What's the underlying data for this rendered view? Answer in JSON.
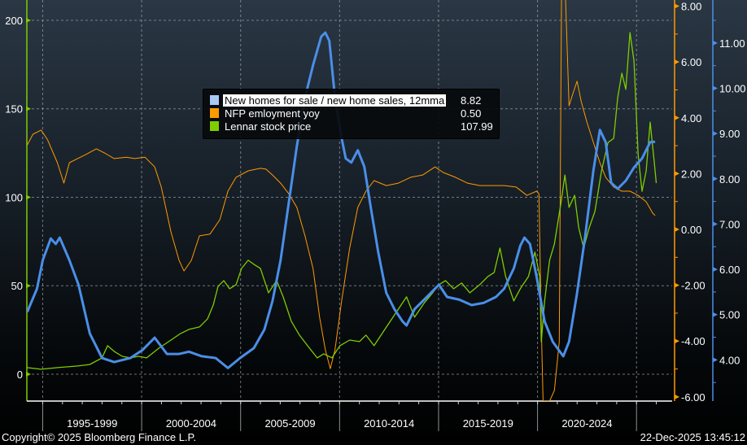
{
  "chart_data": {
    "type": "line",
    "title": "",
    "x_axis": {
      "type": "date",
      "range": [
        1994.2,
        2026.8
      ],
      "period_labels": [
        "1995-1999",
        "2000-2004",
        "2005-2009",
        "2010-2014",
        "2015-2019",
        "2020-2024"
      ],
      "gridlines_at_years": [
        1995,
        2000,
        2005,
        2010,
        2015,
        2020,
        2025
      ]
    },
    "axes": {
      "left": {
        "ylim": [
          -15.2,
          211.5
        ],
        "ticks": [
          0,
          50,
          100,
          150,
          200
        ],
        "tick_labels": [
          "0",
          "50",
          "100",
          "150",
          "200"
        ],
        "color": "#7fcc00"
      },
      "right_orange": {
        "ylim": [
          -6.15,
          8.22
        ],
        "ticks": [
          -6,
          -4,
          -2,
          0,
          2,
          4,
          6,
          8
        ],
        "tick_labels": [
          "-6.00",
          "-4.00",
          "-2.00",
          "0.00",
          "2.00",
          "4.00",
          "6.00",
          "8.00"
        ],
        "color": "#ff9a00"
      },
      "right_blue": {
        "ylim": [
          3.09,
          11.95
        ],
        "ticks": [
          4,
          5,
          6,
          7,
          8,
          9,
          10,
          11
        ],
        "tick_labels": [
          "4.00",
          "5.00",
          "6.00",
          "7.00",
          "8.00",
          "9.00",
          "10.00",
          "11.00"
        ],
        "color": "#4a8fe8"
      }
    },
    "grid": true,
    "legend": {
      "placement": "top-center"
    },
    "series": [
      {
        "name": "New homes for sale / new home sales, 12mma",
        "last_value": "8.82",
        "axis": "right_blue",
        "color": "#4a8fe8",
        "swatch": "#a9c8f5",
        "x": [
          1994.22,
          1994.71,
          1995.0,
          1995.41,
          1995.66,
          1995.86,
          1996.35,
          1996.81,
          1997.38,
          1998.0,
          1998.61,
          1999.43,
          2000.05,
          2000.66,
          2001.28,
          2001.89,
          2002.39,
          2003.04,
          2003.74,
          2004.36,
          2004.97,
          2005.67,
          2006.2,
          2006.61,
          2007.02,
          2007.43,
          2007.84,
          2008.25,
          2008.66,
          2009.07,
          2009.28,
          2009.48,
          2009.77,
          2010.1,
          2010.31,
          2010.59,
          2010.92,
          2011.25,
          2011.54,
          2011.95,
          2012.36,
          2012.77,
          2013.18,
          2013.38,
          2013.79,
          2014.41,
          2015.02,
          2015.43,
          2016.05,
          2016.67,
          2017.28,
          2017.9,
          2018.31,
          2018.8,
          2019.13,
          2019.34,
          2019.62,
          2019.95,
          2020.36,
          2020.77,
          2021.3,
          2021.59,
          2022.0,
          2022.41,
          2022.82,
          2023.15,
          2023.44,
          2023.72,
          2024.05,
          2024.46,
          2024.87,
          2025.28,
          2025.69,
          2025.94
        ],
        "y": [
          5.06,
          5.57,
          6.2,
          6.68,
          6.56,
          6.7,
          6.2,
          5.66,
          4.58,
          4.04,
          3.95,
          4.04,
          4.22,
          4.49,
          4.13,
          4.13,
          4.18,
          4.08,
          4.04,
          3.82,
          4.04,
          4.26,
          4.67,
          5.3,
          6.2,
          7.46,
          8.72,
          9.79,
          10.51,
          11.14,
          11.23,
          11.05,
          9.79,
          8.9,
          8.45,
          8.36,
          8.63,
          8.27,
          7.46,
          6.38,
          5.48,
          5.12,
          4.85,
          4.76,
          5.12,
          5.39,
          5.66,
          5.39,
          5.33,
          5.21,
          5.26,
          5.39,
          5.57,
          6.02,
          6.52,
          6.7,
          6.56,
          5.84,
          4.85,
          4.4,
          4.08,
          4.4,
          5.48,
          6.74,
          8.18,
          9.08,
          8.81,
          7.91,
          7.78,
          7.96,
          8.25,
          8.45,
          8.81,
          8.82
        ]
      },
      {
        "name": "NFP emloyment yoy",
        "last_value": "0.50",
        "axis": "right_orange",
        "color": "#ff9a00",
        "swatch": "#ff9a00",
        "x": [
          1994.22,
          1994.51,
          1994.92,
          1995.25,
          1995.74,
          1996.07,
          1996.35,
          1996.76,
          1997.17,
          1997.71,
          1998.12,
          1998.61,
          1999.23,
          1999.64,
          2000.17,
          2000.66,
          2000.99,
          2001.48,
          2001.89,
          2002.14,
          2002.51,
          2002.92,
          2003.45,
          2003.95,
          2004.36,
          2004.77,
          2005.38,
          2006.0,
          2006.28,
          2006.61,
          2007.02,
          2007.43,
          2007.84,
          2008.25,
          2008.66,
          2008.99,
          2009.28,
          2009.53,
          2009.77,
          2010.1,
          2010.51,
          2010.92,
          2011.33,
          2011.74,
          2012.36,
          2012.97,
          2013.59,
          2014.2,
          2014.82,
          2015.23,
          2015.85,
          2016.46,
          2017.08,
          2017.69,
          2018.31,
          2018.92,
          2019.46,
          2019.95,
          2020.07,
          2020.19,
          2020.28,
          2020.61,
          2020.85,
          2021.1,
          2021.22,
          2021.38,
          2021.59,
          2021.79,
          2022.0,
          2022.21,
          2022.49,
          2022.82,
          2023.15,
          2023.44,
          2023.85,
          2024.26,
          2024.67,
          2025.08,
          2025.49,
          2025.82,
          2025.94
        ],
        "y": [
          3.03,
          3.41,
          3.56,
          3.21,
          2.39,
          1.66,
          2.39,
          2.54,
          2.68,
          2.89,
          2.74,
          2.54,
          2.59,
          2.54,
          2.59,
          2.24,
          1.52,
          -0.09,
          -1.11,
          -1.49,
          -1.11,
          -0.23,
          -0.17,
          0.35,
          1.37,
          1.87,
          2.1,
          2.19,
          2.16,
          1.95,
          1.66,
          1.28,
          0.79,
          -0.23,
          -1.4,
          -3.15,
          -4.31,
          -4.99,
          -4.31,
          -2.57,
          -0.67,
          0.79,
          1.37,
          1.75,
          1.57,
          1.66,
          1.87,
          1.95,
          2.24,
          2.04,
          1.87,
          1.66,
          1.57,
          1.57,
          1.57,
          1.52,
          1.22,
          1.37,
          1.28,
          -3.44,
          -6.15,
          -6.15,
          -5.77,
          -4.02,
          9.5,
          9.0,
          4.43,
          4.87,
          5.31,
          4.58,
          3.85,
          3.12,
          2.39,
          1.87,
          1.52,
          1.37,
          1.37,
          1.22,
          0.99,
          0.58,
          0.5
        ]
      },
      {
        "name": "Lennar stock price",
        "last_value": "107.99",
        "axis": "left",
        "color": "#7fcc00",
        "swatch": "#7fcc00",
        "x": [
          1994.22,
          1994.92,
          1995.74,
          1996.76,
          1997.38,
          1998.0,
          1998.28,
          1998.61,
          1999.02,
          1999.43,
          1999.84,
          2000.25,
          2000.87,
          2001.48,
          2001.97,
          2002.39,
          2002.92,
          2003.33,
          2003.62,
          2003.86,
          2004.15,
          2004.44,
          2004.77,
          2005.05,
          2005.38,
          2005.67,
          2006.0,
          2006.41,
          2006.82,
          2007.15,
          2007.56,
          2007.97,
          2008.38,
          2008.87,
          2009.2,
          2009.61,
          2010.02,
          2010.51,
          2011.0,
          2011.33,
          2011.74,
          2012.15,
          2012.56,
          2012.97,
          2013.38,
          2013.79,
          2014.29,
          2014.7,
          2015.02,
          2015.35,
          2015.76,
          2016.17,
          2016.58,
          2017.08,
          2017.49,
          2017.81,
          2018.1,
          2018.39,
          2018.8,
          2019.13,
          2019.54,
          2019.87,
          2020.11,
          2020.19,
          2020.36,
          2020.61,
          2020.85,
          2021.18,
          2021.38,
          2021.59,
          2021.87,
          2022.08,
          2022.33,
          2022.61,
          2022.9,
          2023.23,
          2023.56,
          2023.85,
          2024.05,
          2024.26,
          2024.46,
          2024.67,
          2024.87,
          2025.08,
          2025.28,
          2025.49,
          2025.69,
          2025.9,
          2026.0
        ],
        "y": [
          3.7,
          2.8,
          3.7,
          4.6,
          5.5,
          9.2,
          16.1,
          12.9,
          10.1,
          9.2,
          10.1,
          9.2,
          14.7,
          19.3,
          23.0,
          25.3,
          26.7,
          31.3,
          39.1,
          49.7,
          52.9,
          48.3,
          50.6,
          59.8,
          64.4,
          62.1,
          59.8,
          46.0,
          52.9,
          43.7,
          29.9,
          22.1,
          16.1,
          9.2,
          11.5,
          9.2,
          16.1,
          19.3,
          18.4,
          22.1,
          16.1,
          23.0,
          29.9,
          36.8,
          43.7,
          32.2,
          40.5,
          46.0,
          50.6,
          52.9,
          48.3,
          51.5,
          46.0,
          50.6,
          55.2,
          57.5,
          71.3,
          55.2,
          41.4,
          48.3,
          55.2,
          69.0,
          55.2,
          18.4,
          41.4,
          64.4,
          73.6,
          96.6,
          112.6,
          94.3,
          101.1,
          82.8,
          71.3,
          82.8,
          92.0,
          114.9,
          131.0,
          133.3,
          156.3,
          170.1,
          161.0,
          193.1,
          177.0,
          124.1,
          103.4,
          114.9,
          142.5,
          119.5,
          107.99
        ]
      }
    ]
  },
  "footer": {
    "copyright": "Copyright© 2025 Bloomberg Finance L.P.",
    "timestamp": "22-Dec-2025 13:45:12"
  }
}
